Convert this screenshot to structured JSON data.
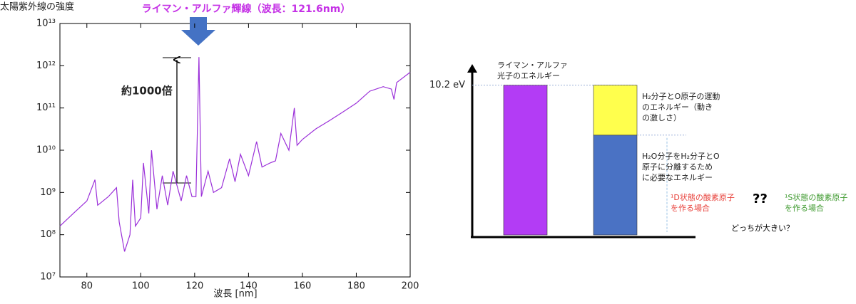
{
  "chart_data": [
    {
      "type": "line",
      "annotation": "ライマン・アルファ輝線（波長：121.6nm）",
      "arrow_label": "約1000倍",
      "ylabel": "太陽紫外線の強度",
      "xlabel": "波長 [nm]",
      "color": "#9b30d9",
      "log_y": true,
      "xlim": [
        70,
        200
      ],
      "xticks": [
        80,
        100,
        120,
        140,
        160,
        180,
        200
      ],
      "ylim": [
        10000000.0,
        10000000000000.0
      ],
      "yticks": [
        {
          "value": 10000000.0,
          "label": "10⁷"
        },
        {
          "value": 100000000.0,
          "label": "10⁸"
        },
        {
          "value": 1000000000.0,
          "label": "10⁹"
        },
        {
          "value": 10000000000.0,
          "label": "10¹⁰"
        },
        {
          "value": 100000000000.0,
          "label": "10¹¹"
        },
        {
          "value": 1000000000000.0,
          "label": "10¹²"
        },
        {
          "value": 10000000000000.0,
          "label": "10¹³"
        }
      ],
      "x": [
        70,
        75,
        80,
        83,
        84,
        85,
        88,
        91,
        92,
        94,
        96,
        97,
        98,
        100,
        101,
        103,
        104,
        106,
        108,
        110,
        112,
        115,
        117,
        119,
        120.5,
        121.6,
        122.5,
        125,
        127,
        130,
        133,
        135,
        137,
        140,
        143,
        145,
        148,
        150,
        152,
        155,
        157,
        158,
        160,
        165,
        170,
        175,
        180,
        185,
        190,
        193,
        194,
        195,
        200
      ],
      "values": [
        160000000.0,
        320000000.0,
        630000000.0,
        2000000000.0,
        500000000.0,
        560000000.0,
        800000000.0,
        1300000000.0,
        200000000.0,
        40000000.0,
        100000000.0,
        2000000000.0,
        160000000.0,
        250000000.0,
        5000000000.0,
        320000000.0,
        10000000000.0,
        400000000.0,
        2500000000.0,
        500000000.0,
        3200000000.0,
        630000000.0,
        2500000000.0,
        800000000.0,
        800000000.0,
        1600000000000.0,
        800000000.0,
        3200000000.0,
        1000000000.0,
        1300000000.0,
        6300000000.0,
        1800000000.0,
        8000000000.0,
        2500000000.0,
        16000000000.0,
        4000000000.0,
        5000000000.0,
        5600000000.0,
        25000000000.0,
        10000000000.0,
        100000000000.0,
        13000000000.0,
        18000000000.0,
        32000000000.0,
        50000000000.0,
        80000000000.0,
        130000000000.0,
        250000000000.0,
        320000000000.0,
        280000000000.0,
        160000000000.0,
        400000000000.0,
        700000000000.0
      ]
    },
    {
      "type": "stacked_bar",
      "ylim": [
        0,
        11.3
      ],
      "yticks": [
        {
          "value": 10.2,
          "label": "10.2 eV"
        }
      ],
      "series": [
        {
          "name": "ライマン・アルファ\n光子のエネルギー",
          "color": "#b33cf5",
          "values": [
            10.2,
            null
          ]
        },
        {
          "name": "H₂O分子をH₂分子とO\n原子に分離するため\nに必要なエネルギー",
          "color": "#4a72c4",
          "values": [
            null,
            6.8
          ]
        },
        {
          "name": "H₂分子とO原子の運動\nのエネルギー（動き\nの激しさ）",
          "color": "#ffff4d",
          "values": [
            null,
            3.4
          ]
        }
      ],
      "annotations": [
        {
          "text": "¹D状態の酸素原子\nを作る場合",
          "color": "#e8403a"
        },
        {
          "text": "??",
          "color": "#000000"
        },
        {
          "text": "¹S状態の酸素原子\nを作る場合",
          "color": "#3f9a2f"
        },
        {
          "text": "どっちが大きい？",
          "color": "#000000"
        }
      ]
    }
  ]
}
